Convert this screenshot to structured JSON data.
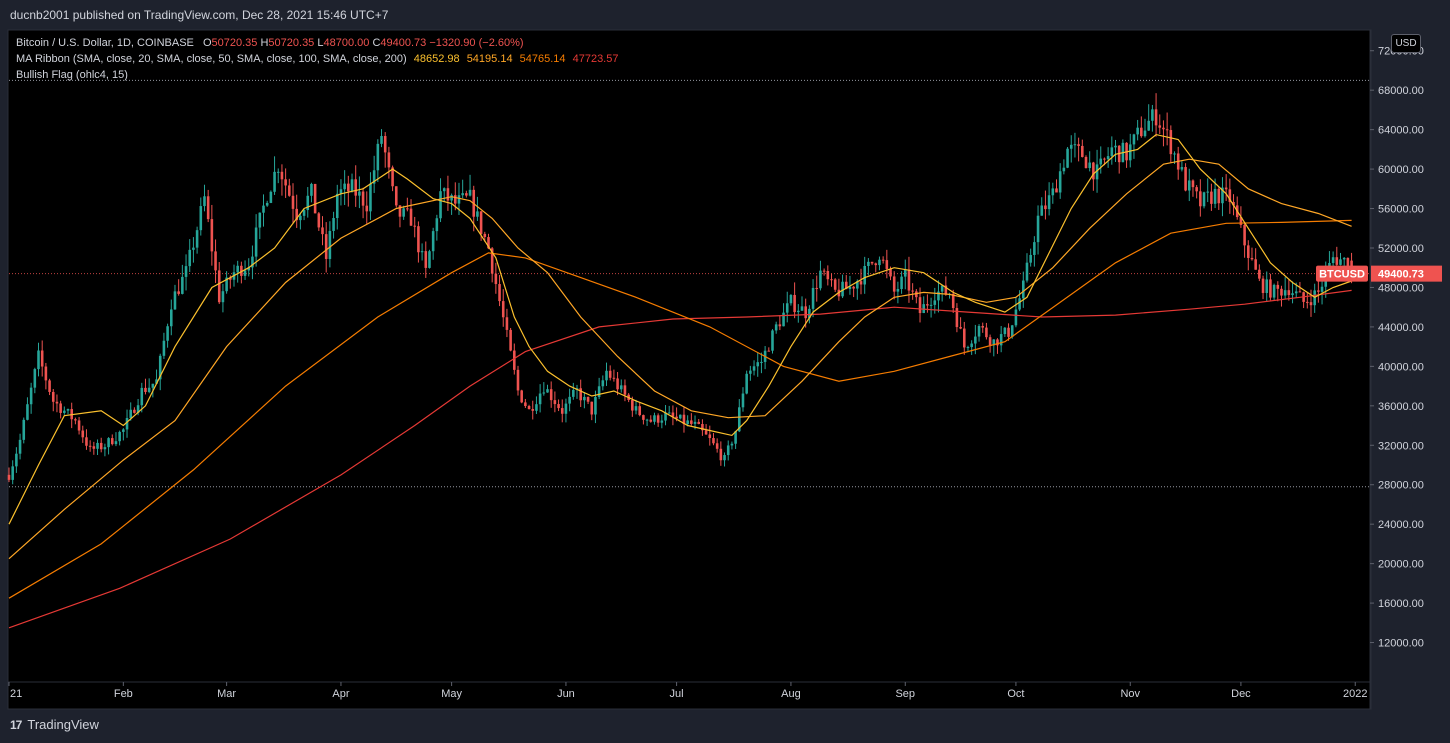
{
  "header": {
    "publisher": "ducnb2001 published on TradingView.com, Dec 28, 2021 15:46 UTC+7"
  },
  "legend": {
    "symbol": "Bitcoin / U.S. Dollar, 1D, COINBASE",
    "open_label": "O",
    "open": "50720.35",
    "high_label": "H",
    "high": "50720.35",
    "low_label": "L",
    "low": "48700.00",
    "close_label": "C",
    "close": "49400.73",
    "change": "−1320.90 (−2.60%)",
    "ma_ribbon": "MA Ribbon (SMA, close, 20, SMA, close, 50, SMA, close, 100, SMA, close, 200)",
    "ma_values": [
      "48652.98",
      "54195.14",
      "54765.14",
      "47723.57"
    ],
    "bullish_flag": "Bullish Flag (ohlc4, 15)"
  },
  "currency_button": "USD",
  "footer": {
    "logo": "17",
    "brand": "TradingView"
  },
  "colors": {
    "up": "#26a69a",
    "down": "#ef5350",
    "ma20": "#fbc02d",
    "ma50": "#ffa726",
    "ma100": "#f57c00",
    "ma200": "#e53935"
  },
  "chart_data": {
    "type": "candlestick",
    "title": "Bitcoin / U.S. Dollar, 1D, COINBASE",
    "ylim": [
      8000,
      74000
    ],
    "y_ticks": [
      "12000.00",
      "16000.00",
      "20000.00",
      "24000.00",
      "28000.00",
      "32000.00",
      "36000.00",
      "40000.00",
      "44000.00",
      "48000.00",
      "52000.00",
      "56000.00",
      "60000.00",
      "64000.00",
      "68000.00",
      "72000.00"
    ],
    "x_ticks": [
      {
        "label": "21",
        "day": 0
      },
      {
        "label": "Feb",
        "day": 31
      },
      {
        "label": "Mar",
        "day": 59
      },
      {
        "label": "Apr",
        "day": 90
      },
      {
        "label": "May",
        "day": 120
      },
      {
        "label": "Jun",
        "day": 151
      },
      {
        "label": "Jul",
        "day": 181
      },
      {
        "label": "Aug",
        "day": 212
      },
      {
        "label": "Sep",
        "day": 243
      },
      {
        "label": "Oct",
        "day": 273
      },
      {
        "label": "Nov",
        "day": 304
      },
      {
        "label": "Dec",
        "day": 334
      },
      {
        "label": "2022",
        "day": 365
      }
    ],
    "xlim_days": [
      0,
      369
    ],
    "price_label": "49400.73",
    "symbol_label": "BTCUSD",
    "last_price": 49400.73,
    "flag_lines": [
      69000,
      27800
    ],
    "close_path": [
      [
        0,
        29000
      ],
      [
        3,
        32500
      ],
      [
        8,
        41000
      ],
      [
        12,
        36500
      ],
      [
        18,
        34500
      ],
      [
        22,
        31500
      ],
      [
        26,
        32000
      ],
      [
        31,
        33500
      ],
      [
        36,
        37500
      ],
      [
        40,
        38500
      ],
      [
        44,
        46500
      ],
      [
        48,
        49500
      ],
      [
        53,
        57000
      ],
      [
        57,
        47000
      ],
      [
        61,
        49500
      ],
      [
        65,
        50500
      ],
      [
        70,
        57500
      ],
      [
        73,
        60500
      ],
      [
        78,
        55500
      ],
      [
        82,
        57500
      ],
      [
        86,
        51000
      ],
      [
        89,
        57500
      ],
      [
        93,
        58000
      ],
      [
        97,
        56500
      ],
      [
        101,
        63500
      ],
      [
        105,
        55500
      ],
      [
        109,
        55000
      ],
      [
        113,
        49500
      ],
      [
        117,
        57500
      ],
      [
        121,
        56500
      ],
      [
        125,
        57000
      ],
      [
        130,
        52000
      ],
      [
        135,
        43000
      ],
      [
        138,
        37500
      ],
      [
        141,
        35500
      ],
      [
        145,
        38000
      ],
      [
        150,
        35500
      ],
      [
        154,
        37500
      ],
      [
        158,
        35500
      ],
      [
        162,
        39500
      ],
      [
        166,
        37500
      ],
      [
        170,
        35500
      ],
      [
        174,
        34500
      ],
      [
        178,
        35000
      ],
      [
        182,
        34500
      ],
      [
        186,
        34000
      ],
      [
        190,
        32500
      ],
      [
        194,
        30500
      ],
      [
        197,
        33500
      ],
      [
        200,
        39500
      ],
      [
        204,
        40500
      ],
      [
        208,
        44000
      ],
      [
        212,
        46500
      ],
      [
        216,
        45500
      ],
      [
        220,
        49500
      ],
      [
        224,
        47500
      ],
      [
        228,
        48000
      ],
      [
        232,
        49500
      ],
      [
        236,
        51500
      ],
      [
        240,
        47500
      ],
      [
        243,
        49000
      ],
      [
        247,
        45500
      ],
      [
        251,
        47500
      ],
      [
        255,
        47500
      ],
      [
        259,
        42000
      ],
      [
        263,
        44000
      ],
      [
        267,
        42500
      ],
      [
        271,
        43500
      ],
      [
        275,
        48000
      ],
      [
        279,
        55000
      ],
      [
        283,
        57500
      ],
      [
        287,
        62000
      ],
      [
        291,
        61500
      ],
      [
        295,
        59500
      ],
      [
        299,
        62000
      ],
      [
        303,
        61500
      ],
      [
        307,
        64000
      ],
      [
        311,
        65500
      ],
      [
        315,
        62500
      ],
      [
        319,
        58500
      ],
      [
        323,
        56500
      ],
      [
        327,
        57500
      ],
      [
        331,
        57000
      ],
      [
        335,
        52500
      ],
      [
        339,
        48500
      ],
      [
        343,
        47500
      ],
      [
        347,
        48000
      ],
      [
        351,
        46500
      ],
      [
        355,
        47500
      ],
      [
        359,
        51000
      ],
      [
        362,
        50700
      ],
      [
        364,
        49400
      ]
    ],
    "ma20_path": [
      [
        0,
        24000
      ],
      [
        8,
        30000
      ],
      [
        15,
        35000
      ],
      [
        25,
        35500
      ],
      [
        31,
        34000
      ],
      [
        37,
        36000
      ],
      [
        45,
        42000
      ],
      [
        55,
        48000
      ],
      [
        65,
        50000
      ],
      [
        72,
        52000
      ],
      [
        80,
        56000
      ],
      [
        90,
        57500
      ],
      [
        96,
        58000
      ],
      [
        104,
        60000
      ],
      [
        108,
        59000
      ],
      [
        115,
        57000
      ],
      [
        120,
        56500
      ],
      [
        125,
        55000
      ],
      [
        132,
        51000
      ],
      [
        137,
        45000
      ],
      [
        141,
        42000
      ],
      [
        146,
        39500
      ],
      [
        152,
        38000
      ],
      [
        158,
        37000
      ],
      [
        164,
        37500
      ],
      [
        170,
        36500
      ],
      [
        177,
        35500
      ],
      [
        184,
        34000
      ],
      [
        190,
        33500
      ],
      [
        196,
        33000
      ],
      [
        200,
        34500
      ],
      [
        206,
        38000
      ],
      [
        212,
        42000
      ],
      [
        218,
        45500
      ],
      [
        225,
        47500
      ],
      [
        232,
        49000
      ],
      [
        240,
        50000
      ],
      [
        248,
        49500
      ],
      [
        256,
        47500
      ],
      [
        262,
        46500
      ],
      [
        270,
        45500
      ],
      [
        276,
        47000
      ],
      [
        282,
        51500
      ],
      [
        288,
        56000
      ],
      [
        294,
        59500
      ],
      [
        300,
        61500
      ],
      [
        306,
        62000
      ],
      [
        311,
        63500
      ],
      [
        317,
        63000
      ],
      [
        323,
        60000
      ],
      [
        330,
        57500
      ],
      [
        336,
        54000
      ],
      [
        342,
        50500
      ],
      [
        348,
        48500
      ],
      [
        354,
        47000
      ],
      [
        359,
        48000
      ],
      [
        364,
        48650
      ]
    ],
    "ma50_path": [
      [
        0,
        20500
      ],
      [
        15,
        25500
      ],
      [
        31,
        30500
      ],
      [
        45,
        34500
      ],
      [
        59,
        42000
      ],
      [
        75,
        48500
      ],
      [
        90,
        53000
      ],
      [
        105,
        56000
      ],
      [
        120,
        57200
      ],
      [
        125,
        56800
      ],
      [
        131,
        55000
      ],
      [
        138,
        52000
      ],
      [
        146,
        49500
      ],
      [
        155,
        45000
      ],
      [
        165,
        41000
      ],
      [
        175,
        37500
      ],
      [
        185,
        35500
      ],
      [
        195,
        34800
      ],
      [
        205,
        35000
      ],
      [
        215,
        38500
      ],
      [
        225,
        42500
      ],
      [
        232,
        45000
      ],
      [
        240,
        47000
      ],
      [
        248,
        47500
      ],
      [
        255,
        47300
      ],
      [
        265,
        46500
      ],
      [
        273,
        47000
      ],
      [
        283,
        50000
      ],
      [
        293,
        54000
      ],
      [
        303,
        57500
      ],
      [
        313,
        60500
      ],
      [
        320,
        61000
      ],
      [
        328,
        60500
      ],
      [
        336,
        58000
      ],
      [
        345,
        56500
      ],
      [
        355,
        55500
      ],
      [
        364,
        54200
      ]
    ],
    "ma100_path": [
      [
        0,
        16500
      ],
      [
        25,
        22000
      ],
      [
        50,
        29500
      ],
      [
        75,
        38000
      ],
      [
        100,
        45000
      ],
      [
        120,
        49500
      ],
      [
        130,
        51500
      ],
      [
        140,
        51000
      ],
      [
        155,
        49000
      ],
      [
        170,
        47000
      ],
      [
        190,
        44000
      ],
      [
        210,
        40000
      ],
      [
        225,
        38500
      ],
      [
        240,
        39500
      ],
      [
        255,
        41000
      ],
      [
        270,
        42500
      ],
      [
        285,
        46500
      ],
      [
        300,
        50500
      ],
      [
        315,
        53500
      ],
      [
        330,
        54500
      ],
      [
        345,
        54600
      ],
      [
        364,
        54800
      ]
    ],
    "ma200_path": [
      [
        0,
        13500
      ],
      [
        30,
        17500
      ],
      [
        60,
        22500
      ],
      [
        90,
        29000
      ],
      [
        110,
        34000
      ],
      [
        125,
        38000
      ],
      [
        140,
        41500
      ],
      [
        160,
        44000
      ],
      [
        180,
        44800
      ],
      [
        200,
        45000
      ],
      [
        220,
        45300
      ],
      [
        240,
        46000
      ],
      [
        260,
        45500
      ],
      [
        280,
        45000
      ],
      [
        300,
        45200
      ],
      [
        320,
        45800
      ],
      [
        335,
        46300
      ],
      [
        350,
        47000
      ],
      [
        364,
        47700
      ]
    ]
  }
}
